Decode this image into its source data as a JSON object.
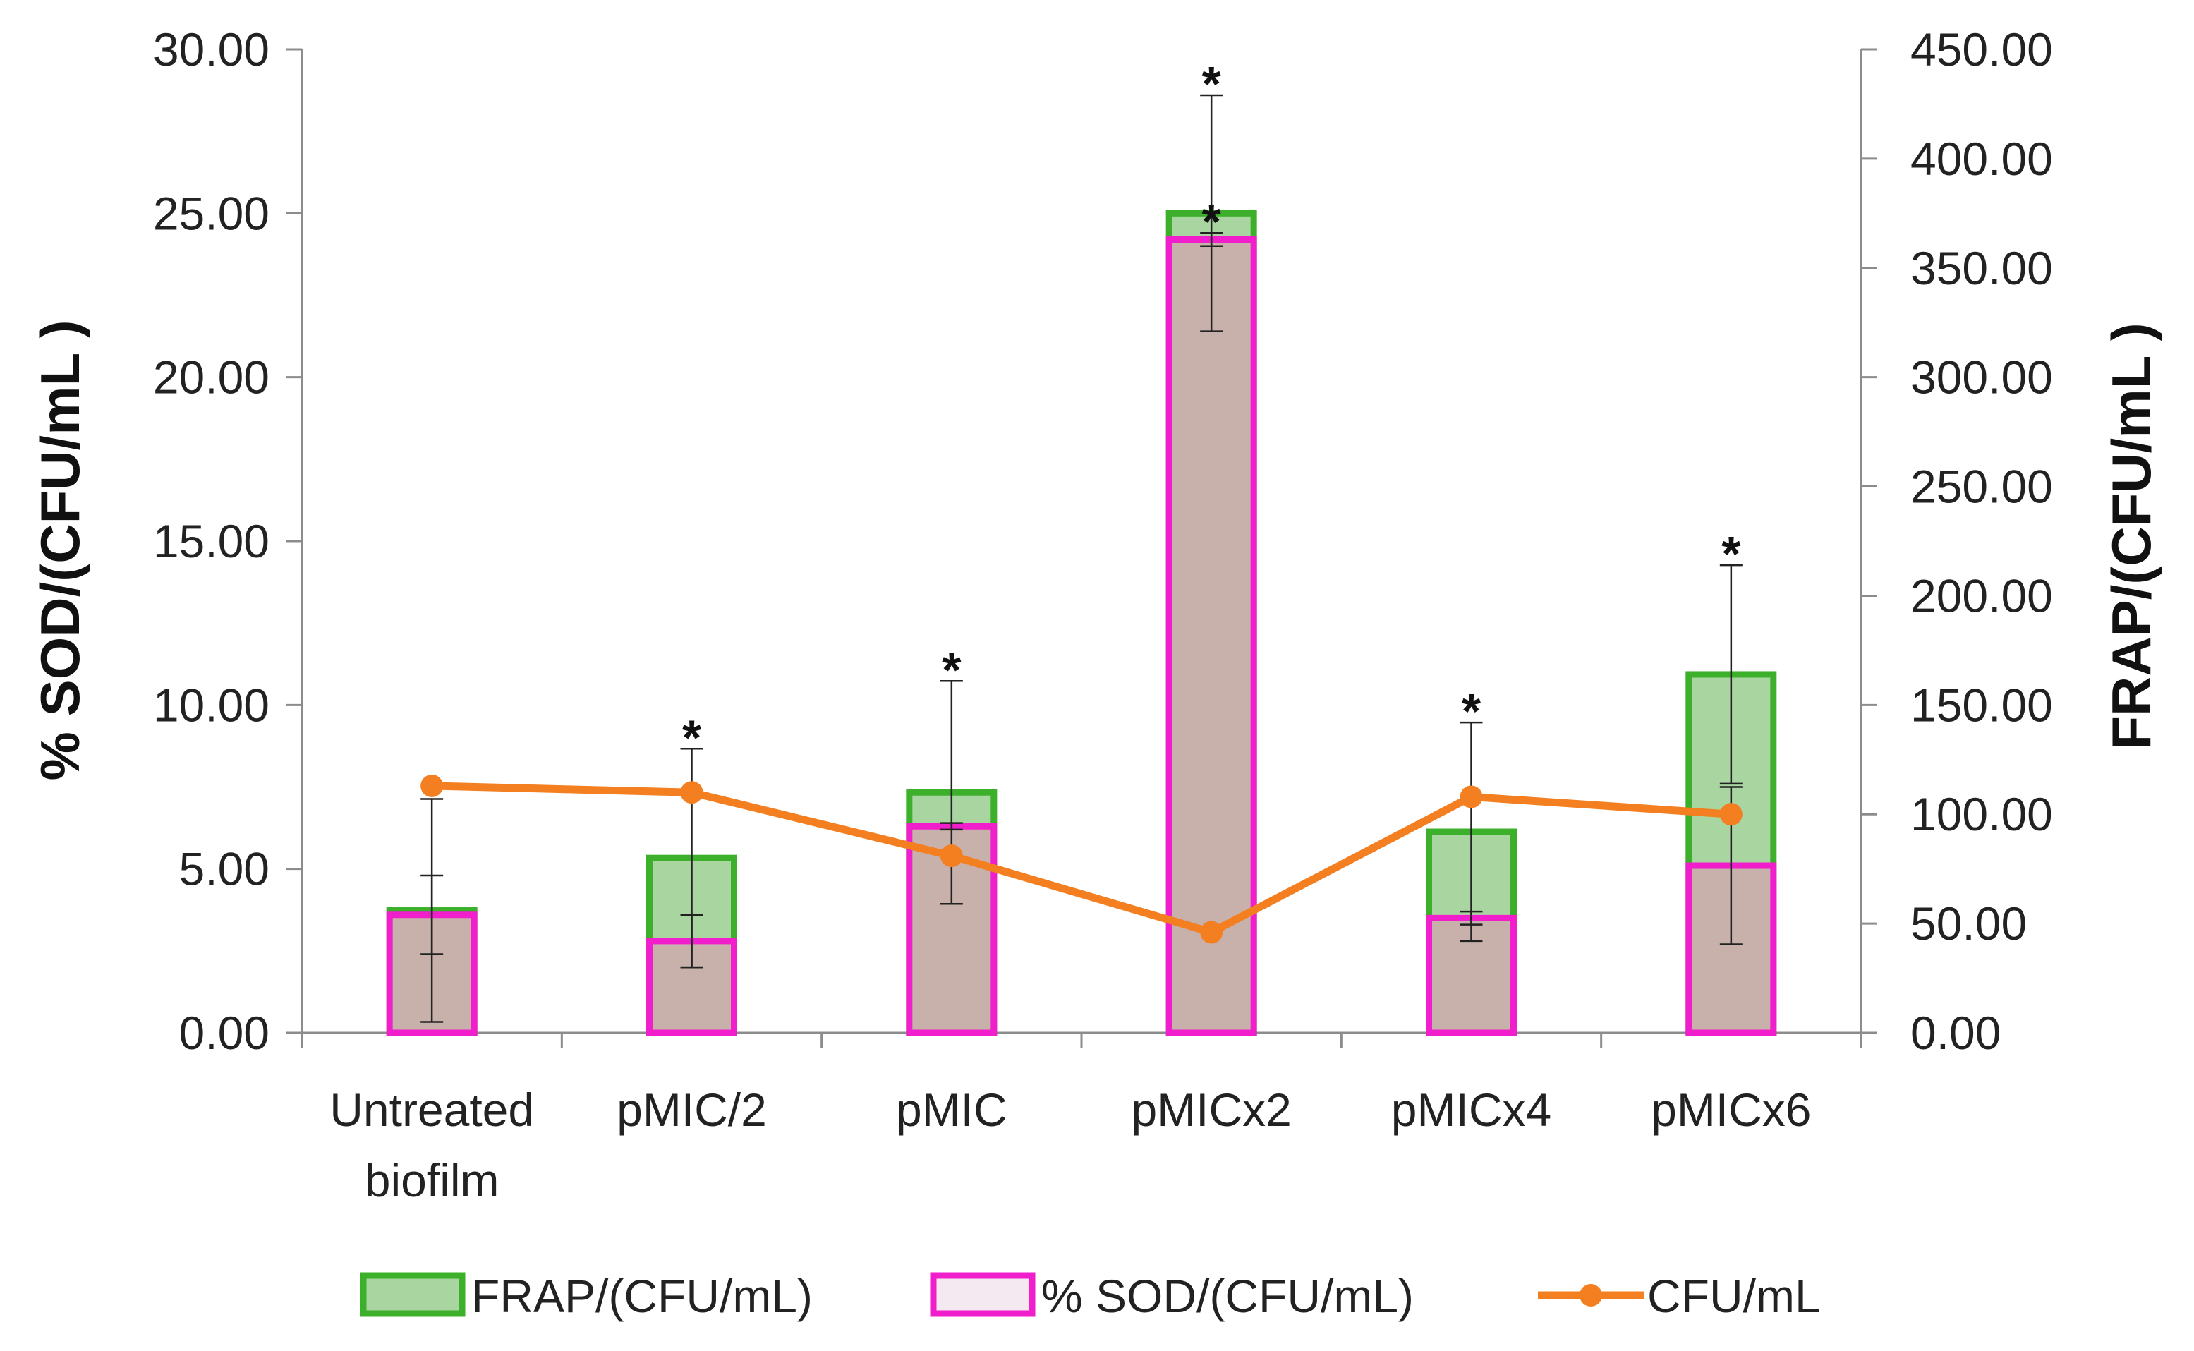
{
  "chart_data": {
    "type": "bar",
    "categories": [
      "Untreated biofilm",
      "pMIC/2",
      "pMIC",
      "pMICx2",
      "pMICx4",
      "pMICx6"
    ],
    "category_lines": [
      [
        "Untreated",
        "biofilm"
      ],
      [
        "pMIC/2"
      ],
      [
        "pMIC"
      ],
      [
        "pMICx2"
      ],
      [
        "pMICx4"
      ],
      [
        "pMICx6"
      ]
    ],
    "y_left": {
      "label": "% SOD/(CFU/mL )",
      "ylim": [
        0,
        30
      ],
      "ticks": [
        "0.00",
        "5.00",
        "10.00",
        "15.00",
        "20.00",
        "25.00",
        "30.00"
      ]
    },
    "y_right": {
      "label": "FRAP/(CFU/mL )",
      "ylim": [
        0,
        450
      ],
      "ticks": [
        "0.00",
        "50.00",
        "100.00",
        "150.00",
        "200.00",
        "250.00",
        "300.00",
        "350.00",
        "400.00",
        "450.00"
      ]
    },
    "series": [
      {
        "name": "FRAP/(CFU/mL)",
        "type": "bar",
        "axis": "right",
        "color": "#3cb02a",
        "fill": "#a8d5a0",
        "values": [
          56,
          80,
          110,
          375,
          92,
          164
        ],
        "error": [
          51,
          50,
          51,
          54,
          50,
          50
        ],
        "significant": [
          false,
          true,
          true,
          true,
          true,
          true
        ]
      },
      {
        "name": "% SOD/(CFU/mL)",
        "type": "bar",
        "axis": "left",
        "color": "#f01ecb",
        "fill": "#c8b1aa",
        "values": [
          3.6,
          2.8,
          6.3,
          24.2,
          3.5,
          5.1
        ],
        "error": [
          1.2,
          0.8,
          0.1,
          0.2,
          0.2,
          2.4
        ],
        "significant": [
          false,
          false,
          false,
          true,
          false,
          false
        ]
      },
      {
        "name": "CFU/mL",
        "type": "line",
        "axis": "right",
        "color": "#f47f20",
        "values": [
          113,
          110,
          81,
          46,
          108,
          100
        ]
      }
    ],
    "legend": [
      "FRAP/(CFU/mL)",
      "% SOD/(CFU/mL)",
      "CFU/mL"
    ],
    "legend_position": "bottom",
    "significance_marker": "*",
    "grid": false
  }
}
